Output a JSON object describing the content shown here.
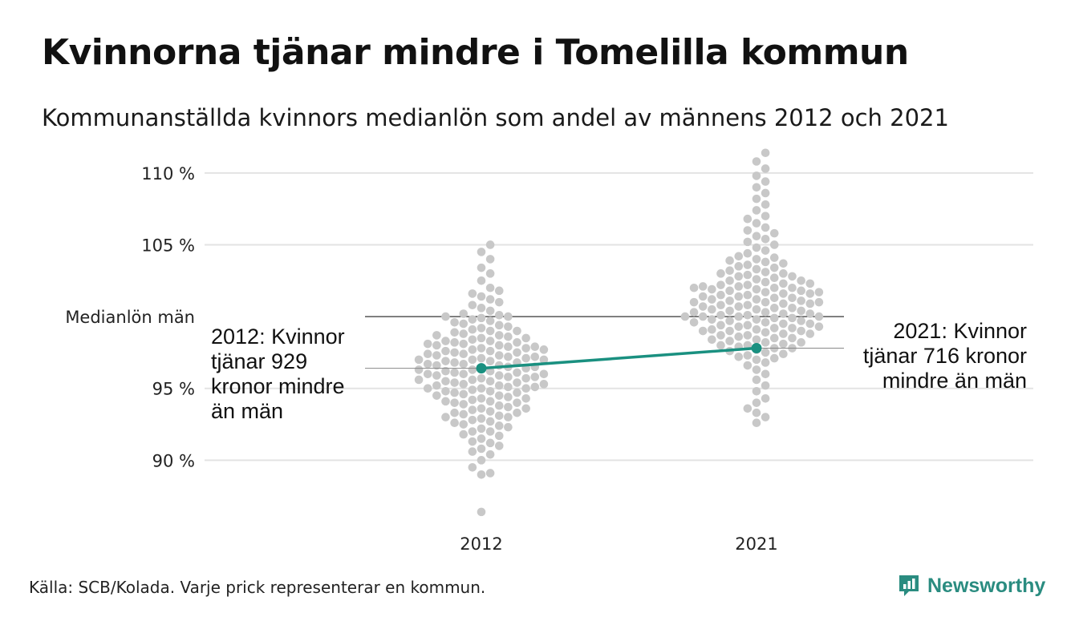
{
  "title": "Kvinnorna tjänar mindre i Tomelilla kommun",
  "subtitle": "Kommunanställda kvinnors medianlön som andel av männens 2012 och 2021",
  "source": "Källa: SCB/Kolada. Varje prick representerar en kommun.",
  "brand": {
    "name": "Newsworthy",
    "logo": "newsworthy-logo-icon",
    "color": "#2a8c80"
  },
  "chart_data": {
    "type": "scatter",
    "subtype": "beeswarm",
    "categories": [
      "2012",
      "2021"
    ],
    "ylim": [
      85.5,
      112
    ],
    "yticks": [
      90,
      95,
      105,
      110
    ],
    "ytick_labels": [
      "90 %",
      "95 %",
      "105 %",
      "110 %"
    ],
    "grid": true,
    "reference_line": {
      "label": "Medianlön män",
      "value": 100
    },
    "dot_color": "#c8c8c8",
    "highlight_color": "#1a9080",
    "highlight": {
      "values": [
        96.4,
        97.8
      ]
    },
    "annotations": [
      {
        "category": "2012",
        "side": "left",
        "lines": [
          "2012: Kvinnor",
          "tjänar 929",
          "kronor mindre",
          "än män"
        ]
      },
      {
        "category": "2021",
        "side": "right",
        "lines": [
          "2021: Kvinnor",
          "tjänar 716 kronor",
          "mindre än män"
        ]
      }
    ],
    "series": [
      {
        "name": "2012",
        "values": [
          86.4,
          89.0,
          89.1,
          89.5,
          90.0,
          90.4,
          90.6,
          90.8,
          91.0,
          91.2,
          91.3,
          91.5,
          91.7,
          91.8,
          92.0,
          92.0,
          92.2,
          92.3,
          92.4,
          92.5,
          92.6,
          92.7,
          92.8,
          92.9,
          93.0,
          93.0,
          93.1,
          93.2,
          93.3,
          93.3,
          93.4,
          93.5,
          93.6,
          93.6,
          93.7,
          93.8,
          93.9,
          94.0,
          94.0,
          94.1,
          94.1,
          94.2,
          94.3,
          94.3,
          94.4,
          94.5,
          94.5,
          94.6,
          94.7,
          94.7,
          94.8,
          94.8,
          94.9,
          95.0,
          95.0,
          95.0,
          95.1,
          95.1,
          95.2,
          95.2,
          95.3,
          95.3,
          95.4,
          95.4,
          95.5,
          95.5,
          95.6,
          95.6,
          95.7,
          95.7,
          95.8,
          95.8,
          95.9,
          95.9,
          96.0,
          96.0,
          96.0,
          96.1,
          96.1,
          96.2,
          96.2,
          96.3,
          96.3,
          96.4,
          96.4,
          96.5,
          96.5,
          96.6,
          96.6,
          96.7,
          96.7,
          96.8,
          96.8,
          96.9,
          96.9,
          97.0,
          97.0,
          97.0,
          97.1,
          97.1,
          97.2,
          97.2,
          97.3,
          97.3,
          97.4,
          97.4,
          97.5,
          97.5,
          97.6,
          97.6,
          97.7,
          97.7,
          97.8,
          97.8,
          97.9,
          97.9,
          98.0,
          98.0,
          98.1,
          98.1,
          98.2,
          98.2,
          98.3,
          98.3,
          98.4,
          98.5,
          98.5,
          98.6,
          98.7,
          98.7,
          98.8,
          98.9,
          99.0,
          99.0,
          99.1,
          99.2,
          99.3,
          99.4,
          99.5,
          99.6,
          99.7,
          99.8,
          99.9,
          100.0,
          100.0,
          100.1,
          100.2,
          100.4,
          100.6,
          100.8,
          101.0,
          101.2,
          101.4,
          101.6,
          101.8,
          102.0,
          102.5,
          103.0,
          103.4,
          104.0,
          104.5,
          105.0
        ]
      },
      {
        "name": "2021",
        "values": [
          92.6,
          93.0,
          93.3,
          93.6,
          94.0,
          94.3,
          94.8,
          95.2,
          95.6,
          96.0,
          96.3,
          96.6,
          96.8,
          97.0,
          97.1,
          97.2,
          97.3,
          97.4,
          97.5,
          97.6,
          97.7,
          97.8,
          97.8,
          97.9,
          98.0,
          98.0,
          98.1,
          98.2,
          98.2,
          98.3,
          98.4,
          98.4,
          98.5,
          98.5,
          98.6,
          98.7,
          98.7,
          98.8,
          98.8,
          98.9,
          99.0,
          99.0,
          99.0,
          99.1,
          99.1,
          99.2,
          99.2,
          99.3,
          99.3,
          99.4,
          99.4,
          99.5,
          99.5,
          99.6,
          99.6,
          99.7,
          99.7,
          99.8,
          99.8,
          99.9,
          99.9,
          100.0,
          100.0,
          100.0,
          100.0,
          100.1,
          100.1,
          100.2,
          100.2,
          100.3,
          100.3,
          100.4,
          100.4,
          100.5,
          100.5,
          100.6,
          100.6,
          100.7,
          100.7,
          100.8,
          100.8,
          100.9,
          100.9,
          101.0,
          101.0,
          101.0,
          101.1,
          101.1,
          101.2,
          101.2,
          101.3,
          101.3,
          101.4,
          101.4,
          101.5,
          101.5,
          101.6,
          101.6,
          101.7,
          101.7,
          101.8,
          101.8,
          101.9,
          101.9,
          102.0,
          102.0,
          102.0,
          102.1,
          102.1,
          102.2,
          102.2,
          102.3,
          102.3,
          102.4,
          102.5,
          102.5,
          102.6,
          102.7,
          102.8,
          102.8,
          102.9,
          103.0,
          103.0,
          103.1,
          103.2,
          103.3,
          103.4,
          103.5,
          103.6,
          103.7,
          103.8,
          103.9,
          104.0,
          104.1,
          104.2,
          104.4,
          104.6,
          104.8,
          105.0,
          105.2,
          105.4,
          105.6,
          105.8,
          106.0,
          106.2,
          106.5,
          106.8,
          107.0,
          107.4,
          107.8,
          108.2,
          108.6,
          109.0,
          109.4,
          109.8,
          110.3,
          110.8,
          111.4
        ]
      }
    ]
  }
}
